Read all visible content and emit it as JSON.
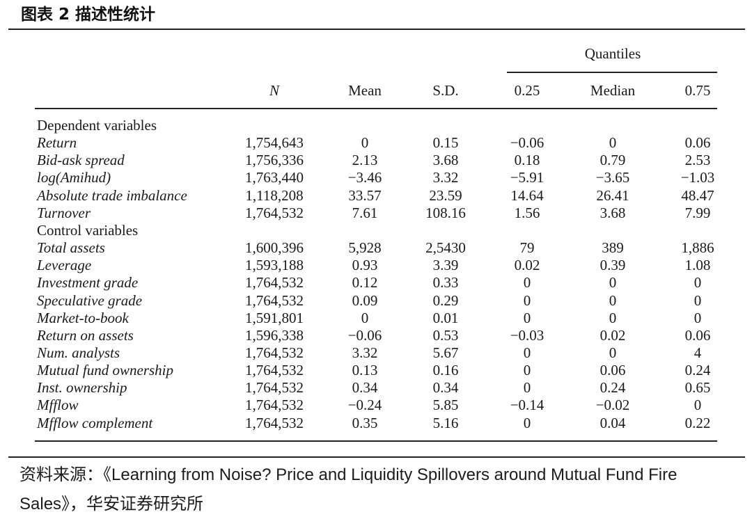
{
  "figure_title": "图表 2  描述性统计",
  "table": {
    "header": {
      "quantiles_label": "Quantiles",
      "columns": [
        "N",
        "Mean",
        "S.D.",
        "0.25",
        "Median",
        "0.75"
      ]
    },
    "sections": [
      {
        "title": "Dependent variables",
        "rows": [
          {
            "label": "Return",
            "values": [
              "1,754,643",
              "0",
              "0.15",
              "−0.06",
              "0",
              "0.06"
            ]
          },
          {
            "label": "Bid-ask spread",
            "values": [
              "1,756,336",
              "2.13",
              "3.68",
              "0.18",
              "0.79",
              "2.53"
            ]
          },
          {
            "label": "log(Amihud)",
            "values": [
              "1,763,440",
              "−3.46",
              "3.32",
              "−5.91",
              "−3.65",
              "−1.03"
            ]
          },
          {
            "label": "Absolute trade imbalance",
            "values": [
              "1,118,208",
              "33.57",
              "23.59",
              "14.64",
              "26.41",
              "48.47"
            ]
          },
          {
            "label": "Turnover",
            "values": [
              "1,764,532",
              "7.61",
              "108.16",
              "1.56",
              "3.68",
              "7.99"
            ]
          }
        ]
      },
      {
        "title": "Control variables",
        "rows": [
          {
            "label": "Total assets",
            "values": [
              "1,600,396",
              "5,928",
              "2,5430",
              "79",
              "389",
              "1,886"
            ]
          },
          {
            "label": "Leverage",
            "values": [
              "1,593,188",
              "0.93",
              "3.39",
              "0.02",
              "0.39",
              "1.08"
            ]
          },
          {
            "label": "Investment grade",
            "values": [
              "1,764,532",
              "0.12",
              "0.33",
              "0",
              "0",
              "0"
            ]
          },
          {
            "label": "Speculative grade",
            "values": [
              "1,764,532",
              "0.09",
              "0.29",
              "0",
              "0",
              "0"
            ]
          },
          {
            "label": "Market-to-book",
            "values": [
              "1,591,801",
              "0",
              "0.01",
              "0",
              "0",
              "0"
            ]
          },
          {
            "label": "Return on assets",
            "values": [
              "1,596,338",
              "−0.06",
              "0.53",
              "−0.03",
              "0.02",
              "0.06"
            ]
          },
          {
            "label": "Num. analysts",
            "values": [
              "1,764,532",
              "3.32",
              "5.67",
              "0",
              "0",
              "4"
            ]
          },
          {
            "label": "Mutual fund ownership",
            "values": [
              "1,764,532",
              "0.13",
              "0.16",
              "0",
              "0.06",
              "0.24"
            ]
          },
          {
            "label": "Inst. ownership",
            "values": [
              "1,764,532",
              "0.34",
              "0.34",
              "0",
              "0.24",
              "0.65"
            ]
          },
          {
            "label": "Mfflow",
            "values": [
              "1,764,532",
              "−0.24",
              "5.85",
              "−0.14",
              "−0.02",
              "0"
            ]
          },
          {
            "label": "Mfflow complement",
            "values": [
              "1,764,532",
              "0.35",
              "5.16",
              "0",
              "0.04",
              "0.22"
            ]
          }
        ]
      }
    ]
  },
  "source": {
    "prefix": "资料来源：",
    "text": "《Learning from Noise? Price and Liquidity Spillovers around Mutual Fund Fire Sales》，华安证券研究所"
  }
}
